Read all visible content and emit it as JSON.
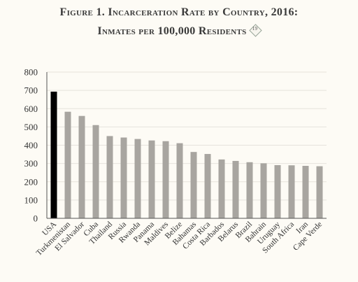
{
  "figure": {
    "title_line1": "Figure 1. Incarceration Rate by Country, 2016:",
    "title_line2": "Inmates per 100,000 Residents",
    "note_number": "19"
  },
  "colors": {
    "background": "#fdfbf5",
    "highlight_bar": "#000000",
    "bar": "#a8a5a0",
    "gridline": "#e6e3dc",
    "axis": "#555555"
  },
  "chart_data": {
    "type": "bar",
    "title": "Incarceration Rate by Country, 2016: Inmates per 100,000 Residents",
    "xlabel": "",
    "ylabel": "",
    "ylim": [
      0,
      800
    ],
    "yticks": [
      0,
      100,
      200,
      300,
      400,
      500,
      600,
      700,
      800
    ],
    "grid": true,
    "highlight_category": "USA",
    "categories": [
      "USA",
      "Turkmenistan",
      "El Salvador",
      "Cuba",
      "Thailand",
      "Russia",
      "Rwanda",
      "Panama",
      "Maldives",
      "Belize",
      "Bahamas",
      "Costa Rica",
      "Barbados",
      "Belarus",
      "Brazil",
      "Bahrain",
      "Uruguay",
      "South Africa",
      "Iran",
      "Cape Verde"
    ],
    "values": [
      693,
      583,
      560,
      510,
      450,
      442,
      434,
      426,
      422,
      411,
      363,
      352,
      322,
      314,
      307,
      301,
      291,
      290,
      287,
      285
    ]
  }
}
